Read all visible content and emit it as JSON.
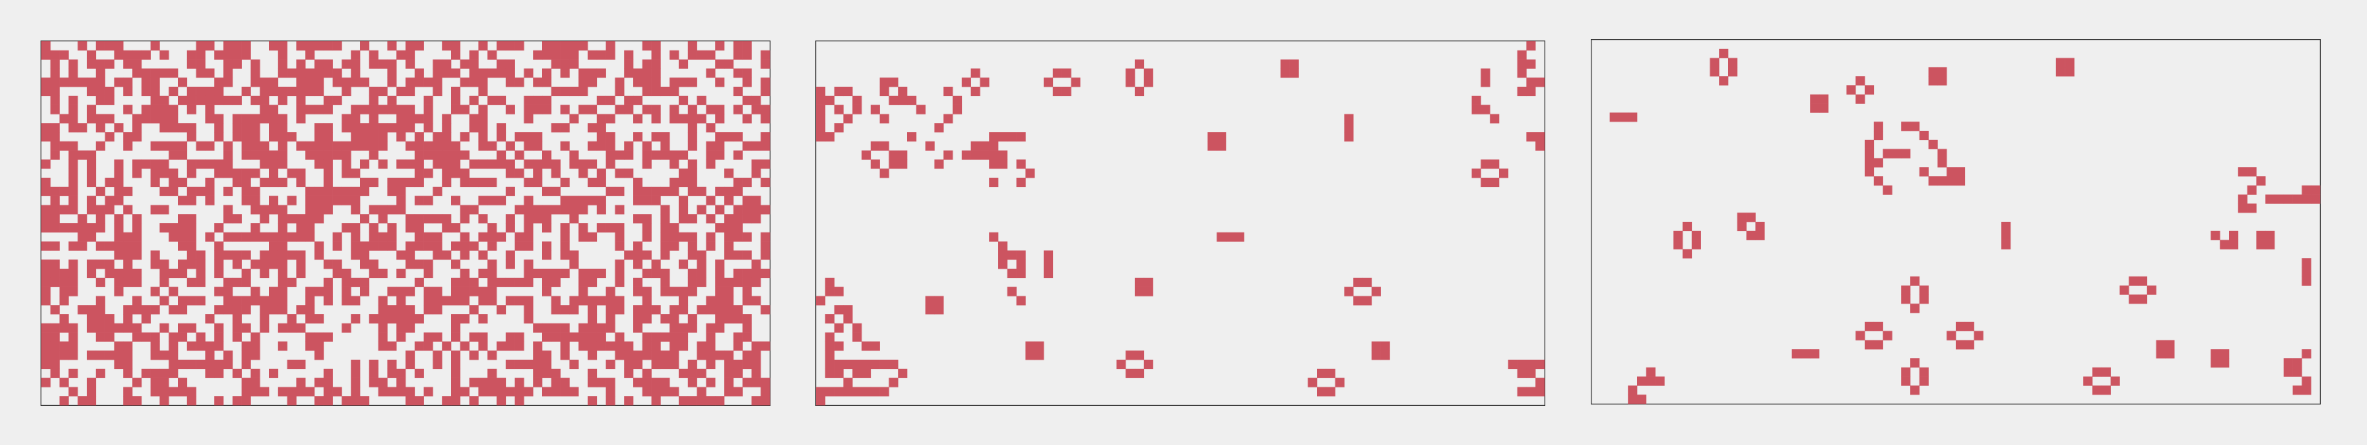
{
  "colors": {
    "background": "#efefef",
    "cell_alive": "#cc5460",
    "cell_dead": "#efefef",
    "border": "#333333"
  },
  "grid": {
    "columns": 80,
    "rows": 40
  },
  "panels": [
    {
      "id": "initial",
      "seed": 7,
      "fill": 0.5,
      "structures": []
    },
    {
      "id": "evolved",
      "structures": [
        {
          "type": "block",
          "c": 51,
          "r": 2
        },
        {
          "type": "block",
          "c": 43,
          "r": 10
        },
        {
          "type": "block",
          "c": 35,
          "r": 26
        },
        {
          "type": "block",
          "c": 12,
          "r": 28
        },
        {
          "type": "block",
          "c": 23,
          "r": 33
        },
        {
          "type": "block",
          "c": 61,
          "r": 33
        },
        {
          "type": "beehive_h",
          "c": 25,
          "r": 3
        },
        {
          "type": "beehive_h",
          "c": 58,
          "r": 26
        },
        {
          "type": "beehive_h",
          "c": 72,
          "r": 13
        },
        {
          "type": "beehive_h",
          "c": 33,
          "r": 34
        },
        {
          "type": "beehive_h",
          "c": 54,
          "r": 36
        },
        {
          "type": "beehive_v",
          "c": 34,
          "r": 2
        },
        {
          "type": "blinker_h",
          "c": 44,
          "r": 21
        },
        {
          "type": "blinker_v",
          "c": 58,
          "r": 8
        },
        {
          "type": "blinker_v",
          "c": 25,
          "r": 23
        },
        {
          "type": "boat",
          "c": 7,
          "r": 4
        },
        {
          "type": "tub",
          "c": 16,
          "r": 3
        },
        {
          "type": "loaf",
          "c": 1,
          "r": 5
        },
        {
          "type": "loaf",
          "c": 5,
          "r": 11
        },
        {
          "type": "ship",
          "c": 18,
          "r": 11
        },
        {
          "type": "ship",
          "c": 20,
          "r": 23
        },
        {
          "type": "cells",
          "c": 0,
          "r": 0,
          "cells": [
            [
              78,
              0
            ],
            [
              77,
              1
            ],
            [
              78,
              2
            ],
            [
              73,
              3
            ],
            [
              73,
              4
            ],
            [
              77,
              2
            ],
            [
              77,
              3
            ],
            [
              78,
              4
            ],
            [
              79,
              4
            ],
            [
              77,
              5
            ],
            [
              78,
              5
            ],
            [
              72,
              6
            ],
            [
              72,
              7
            ],
            [
              73,
              7
            ],
            [
              74,
              8
            ],
            [
              78,
              10
            ],
            [
              79,
              10
            ],
            [
              79,
              11
            ],
            [
              0,
              5
            ],
            [
              0,
              6
            ],
            [
              0,
              7
            ],
            [
              1,
              6
            ],
            [
              0,
              8
            ],
            [
              0,
              9
            ],
            [
              0,
              10
            ],
            [
              1,
              10
            ],
            [
              2,
              9
            ],
            [
              6,
              7
            ],
            [
              7,
              8
            ],
            [
              9,
              6
            ],
            [
              10,
              6
            ],
            [
              11,
              7
            ],
            [
              14,
              5
            ],
            [
              15,
              6
            ],
            [
              15,
              7
            ],
            [
              13,
              9
            ],
            [
              14,
              8
            ],
            [
              19,
              10
            ],
            [
              20,
              10
            ],
            [
              21,
              10
            ],
            [
              22,
              10
            ],
            [
              19,
              12
            ],
            [
              20,
              12
            ],
            [
              22,
              13
            ],
            [
              23,
              14
            ],
            [
              22,
              15
            ],
            [
              19,
              15
            ],
            [
              10,
              10
            ],
            [
              12,
              11
            ],
            [
              8,
              12
            ],
            [
              9,
              12
            ],
            [
              9,
              13
            ],
            [
              13,
              13
            ],
            [
              14,
              12
            ],
            [
              16,
              12
            ],
            [
              17,
              12
            ],
            [
              17,
              11
            ],
            [
              19,
              21
            ],
            [
              20,
              22
            ],
            [
              20,
              24
            ],
            [
              21,
              23
            ],
            [
              22,
              25
            ],
            [
              22,
              28
            ],
            [
              21,
              27
            ],
            [
              22,
              23
            ],
            [
              25,
              23
            ],
            [
              1,
              26
            ],
            [
              1,
              27
            ],
            [
              2,
              27
            ],
            [
              0,
              28
            ],
            [
              2,
              29
            ],
            [
              3,
              29
            ],
            [
              1,
              30
            ],
            [
              2,
              31
            ],
            [
              3,
              30
            ],
            [
              4,
              31
            ],
            [
              4,
              32
            ],
            [
              5,
              33
            ],
            [
              6,
              33
            ],
            [
              1,
              32
            ],
            [
              1,
              33
            ],
            [
              2,
              33
            ],
            [
              1,
              34
            ],
            [
              1,
              35
            ],
            [
              2,
              35
            ],
            [
              3,
              35
            ],
            [
              4,
              35
            ],
            [
              5,
              35
            ],
            [
              6,
              35
            ],
            [
              7,
              35
            ],
            [
              8,
              35
            ],
            [
              9,
              36
            ],
            [
              8,
              37
            ],
            [
              7,
              38
            ],
            [
              6,
              38
            ],
            [
              5,
              38
            ],
            [
              4,
              38
            ],
            [
              3,
              38
            ],
            [
              2,
              38
            ],
            [
              1,
              38
            ],
            [
              0,
              38
            ],
            [
              0,
              39
            ],
            [
              1,
              36
            ],
            [
              2,
              36
            ],
            [
              3,
              37
            ],
            [
              4,
              36
            ],
            [
              5,
              36
            ],
            [
              76,
              35
            ],
            [
              77,
              35
            ],
            [
              78,
              35
            ],
            [
              79,
              35
            ],
            [
              78,
              36
            ],
            [
              77,
              36
            ],
            [
              79,
              37
            ],
            [
              79,
              38
            ],
            [
              78,
              38
            ],
            [
              77,
              38
            ]
          ]
        }
      ]
    },
    {
      "id": "later",
      "structures": [
        {
          "type": "block",
          "c": 37,
          "r": 3
        },
        {
          "type": "block",
          "c": 51,
          "r": 2
        },
        {
          "type": "block",
          "c": 24,
          "r": 6
        },
        {
          "type": "block",
          "c": 78,
          "r": 16
        },
        {
          "type": "block",
          "c": 73,
          "r": 21
        },
        {
          "type": "block",
          "c": 62,
          "r": 33
        },
        {
          "type": "block",
          "c": 68,
          "r": 34
        },
        {
          "type": "beehive_v",
          "c": 13,
          "r": 1
        },
        {
          "type": "beehive_v",
          "c": 9,
          "r": 20
        },
        {
          "type": "beehive_v",
          "c": 34,
          "r": 26
        },
        {
          "type": "beehive_v",
          "c": 34,
          "r": 35
        },
        {
          "type": "beehive_h",
          "c": 58,
          "r": 26
        },
        {
          "type": "beehive_h",
          "c": 29,
          "r": 31
        },
        {
          "type": "beehive_h",
          "c": 39,
          "r": 31
        },
        {
          "type": "beehive_h",
          "c": 54,
          "r": 36
        },
        {
          "type": "tub",
          "c": 28,
          "r": 4
        },
        {
          "type": "ship",
          "c": 16,
          "r": 19
        },
        {
          "type": "blinker_h",
          "c": 2,
          "r": 8
        },
        {
          "type": "blinker_h",
          "c": 22,
          "r": 34
        },
        {
          "type": "blinker_v",
          "c": 45,
          "r": 20
        },
        {
          "type": "blinker_v",
          "c": 78,
          "r": 24
        },
        {
          "type": "cells",
          "c": 0,
          "r": 0,
          "cells": [
            [
              31,
              9
            ],
            [
              31,
              10
            ],
            [
              30,
              11
            ],
            [
              30,
              12
            ],
            [
              30,
              13
            ],
            [
              31,
              13
            ],
            [
              32,
              12
            ],
            [
              33,
              12
            ],
            [
              34,
              12
            ],
            [
              30,
              14
            ],
            [
              31,
              15
            ],
            [
              32,
              16
            ],
            [
              34,
              9
            ],
            [
              35,
              9
            ],
            [
              36,
              10
            ],
            [
              37,
              11
            ],
            [
              38,
              12
            ],
            [
              38,
              13
            ],
            [
              39,
              14
            ],
            [
              40,
              14
            ],
            [
              40,
              15
            ],
            [
              39,
              15
            ],
            [
              36,
              14
            ],
            [
              37,
              15
            ],
            [
              38,
              15
            ],
            [
              71,
              14
            ],
            [
              72,
              14
            ],
            [
              73,
              15
            ],
            [
              72,
              16
            ],
            [
              71,
              17
            ],
            [
              71,
              18
            ],
            [
              72,
              18
            ],
            [
              74,
              17
            ],
            [
              75,
              17
            ],
            [
              76,
              17
            ],
            [
              77,
              17
            ],
            [
              68,
              21
            ],
            [
              69,
              22
            ],
            [
              70,
              21
            ],
            [
              70,
              22
            ],
            [
              6,
              36
            ],
            [
              5,
              37
            ],
            [
              6,
              37
            ],
            [
              7,
              37
            ],
            [
              4,
              38
            ],
            [
              4,
              39
            ],
            [
              5,
              39
            ],
            [
              76,
              35
            ],
            [
              77,
              35
            ],
            [
              77,
              36
            ],
            [
              76,
              36
            ],
            [
              78,
              34
            ],
            [
              78,
              37
            ],
            [
              77,
              38
            ],
            [
              78,
              38
            ]
          ]
        }
      ]
    }
  ]
}
